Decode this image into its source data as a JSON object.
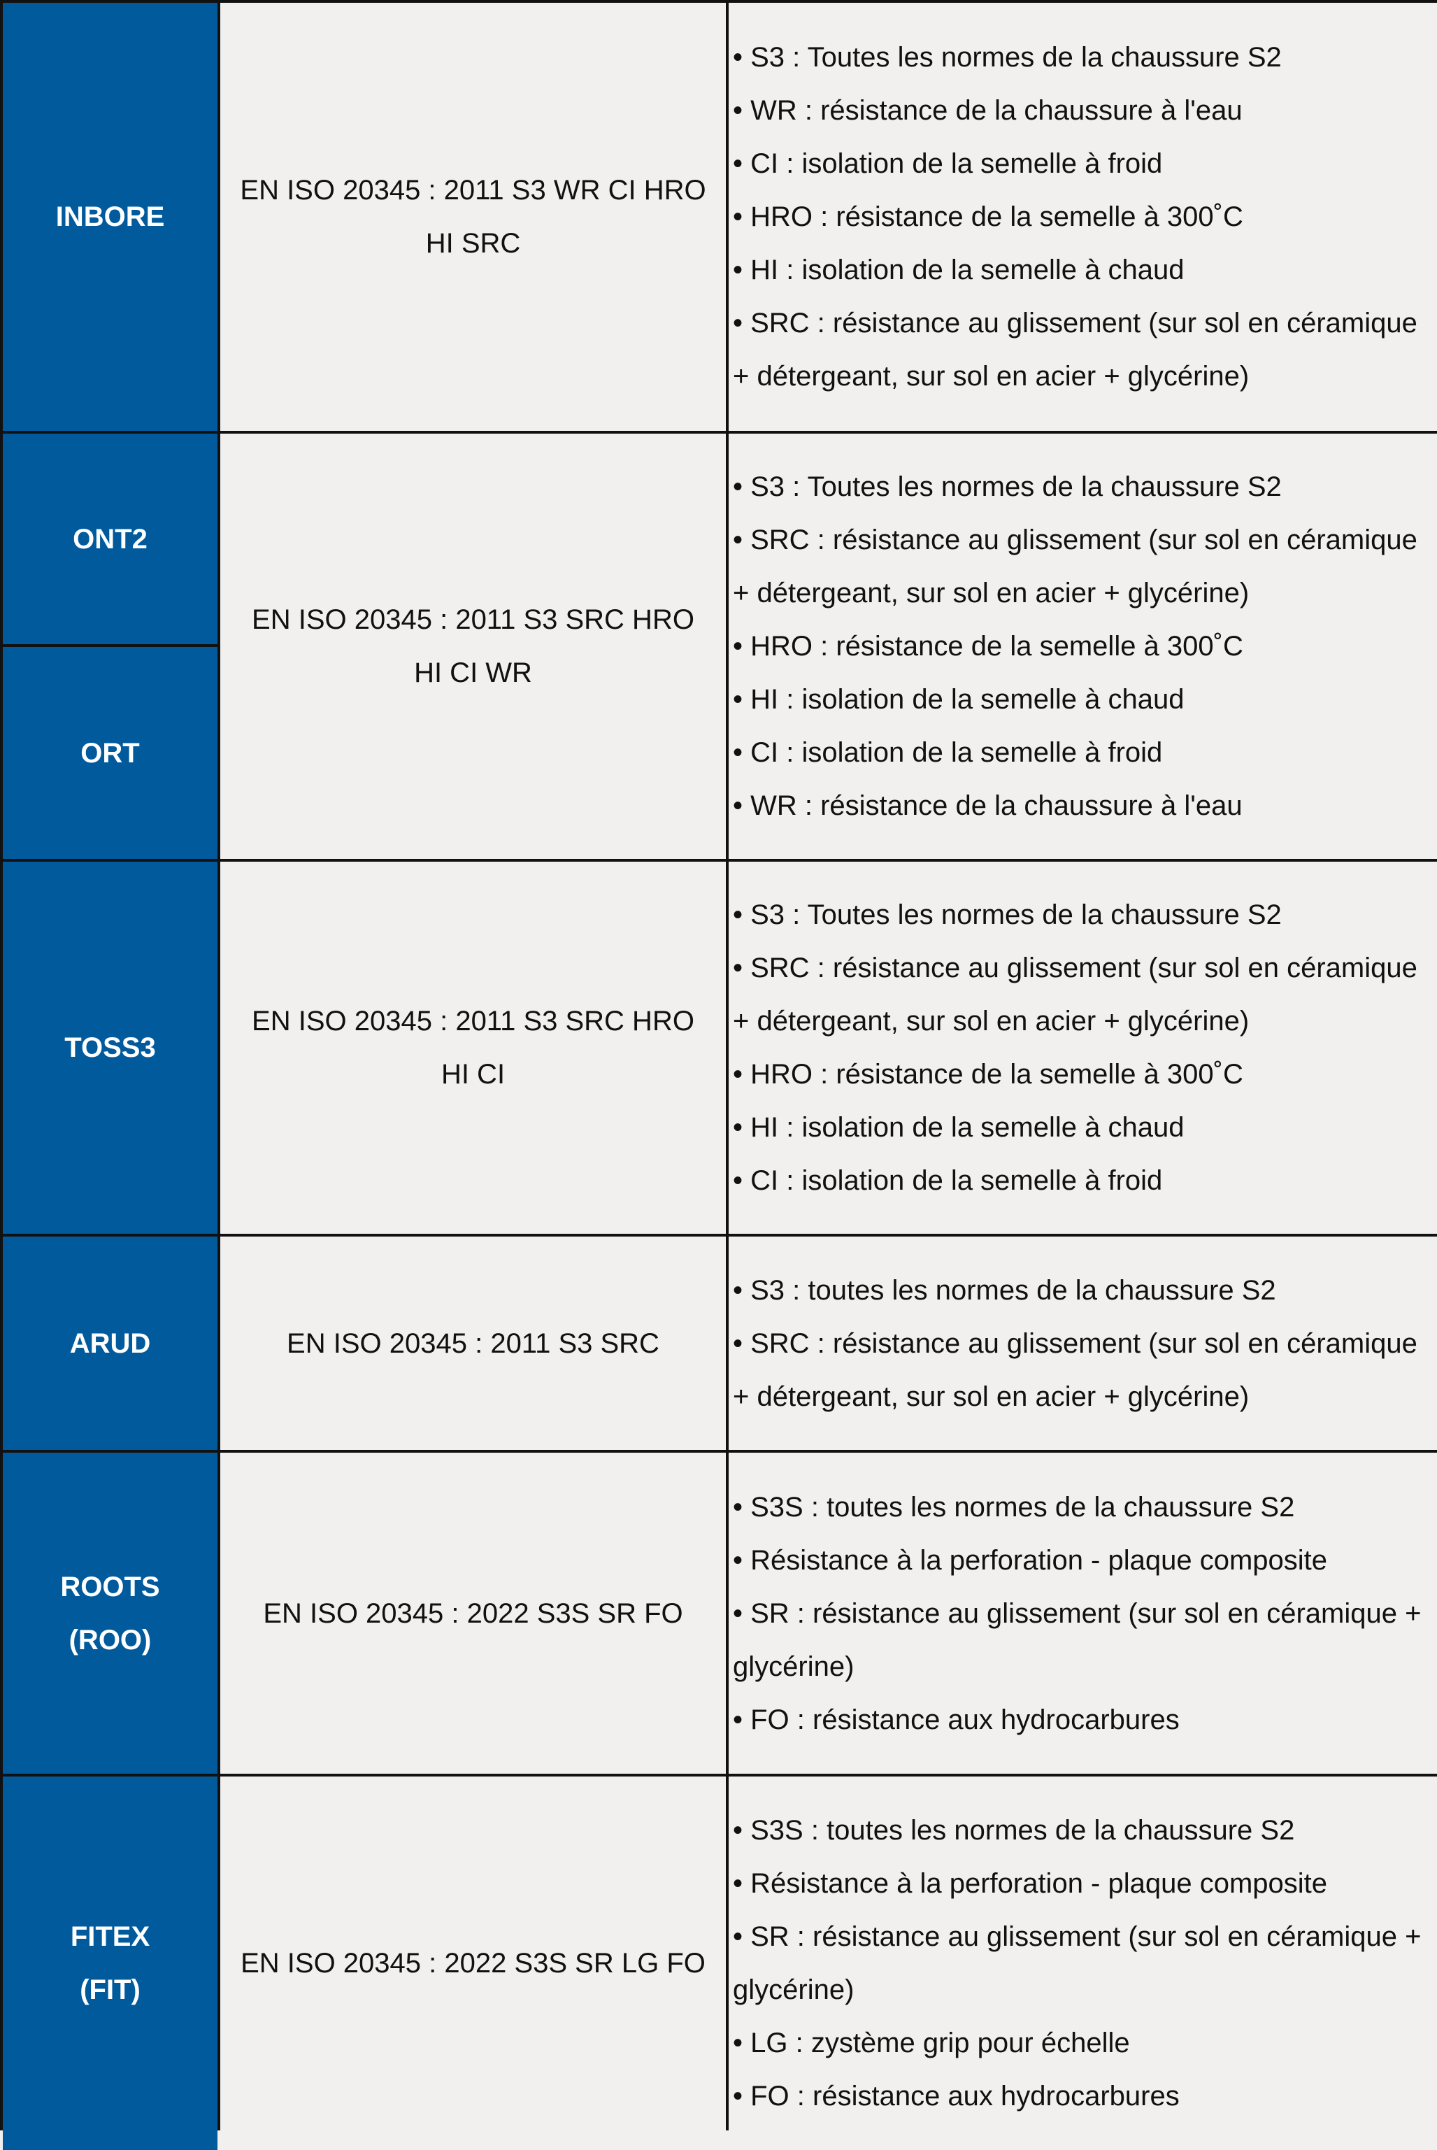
{
  "colors": {
    "header_blue": "#005a9c",
    "cell_bg": "#f1f0ee",
    "border": "#111111"
  },
  "rows": [
    {
      "names": [
        "INBORE"
      ],
      "norm": "EN ISO 20345 : 2011 S3 WR CI HRO HI SRC",
      "items": [
        "• S3 : Toutes les normes de la chaussure S2",
        "• WR : résistance de la chaussure à l'eau",
        "• CI : isolation de la semelle à froid",
        "• HRO : résistance de la semelle à 300˚C",
        "• HI : isolation de la semelle à chaud",
        "• SRC : résistance au glissement (sur sol en céramique + détergeant, sur sol en acier + glycérine)"
      ]
    },
    {
      "names": [
        "ONT2",
        "ORT"
      ],
      "norm": "EN ISO 20345 : 2011 S3 SRC HRO HI CI WR",
      "items": [
        "• S3 : Toutes les normes de la chaussure S2",
        "• SRC : résistance au glissement (sur sol en céramique + détergeant, sur sol en acier + glycérine)",
        "• HRO : résistance de la semelle à 300˚C",
        "• HI : isolation de la semelle à chaud",
        "• CI : isolation de la semelle à froid",
        "• WR : résistance de la chaussure à l'eau"
      ]
    },
    {
      "names": [
        "TOSS3"
      ],
      "norm": "EN ISO 20345 : 2011 S3 SRC HRO HI CI",
      "items": [
        "• S3 : Toutes les normes de la chaussure S2",
        "• SRC : résistance au glissement (sur sol en céramique + détergeant, sur sol en acier + glycérine)",
        "• HRO : résistance de la semelle à 300˚C",
        "• HI : isolation de la semelle à chaud",
        "• CI : isolation de la semelle à froid"
      ]
    },
    {
      "names": [
        "ARUD"
      ],
      "norm": "EN ISO 20345 : 2011 S3 SRC",
      "items": [
        "• S3 : toutes les normes de la chaussure S2",
        "• SRC : résistance au glissement (sur sol en céramique + détergeant, sur sol en acier + glycérine)"
      ]
    },
    {
      "names": [
        "ROOTS (ROO)"
      ],
      "norm": "EN ISO 20345 : 2022 S3S SR FO",
      "items": [
        "• S3S : toutes les normes de la chaussure S2",
        "• Résistance à la perforation - plaque composite",
        "• SR : résistance au glissement (sur sol en céramique + glycérine)",
        "• FO : résistance aux hydrocarbures"
      ]
    },
    {
      "names": [
        "FITEX (FIT)"
      ],
      "norm": "EN ISO 20345 : 2022 S3S SR LG FO",
      "items": [
        "• S3S : toutes les normes de la chaussure S2",
        "• Résistance à la perforation - plaque composite",
        "• SR : résistance au glissement (sur sol en céramique + glycérine)",
        "• LG : zystème grip pour échelle",
        "• FO : résistance aux hydrocarbures"
      ]
    }
  ]
}
